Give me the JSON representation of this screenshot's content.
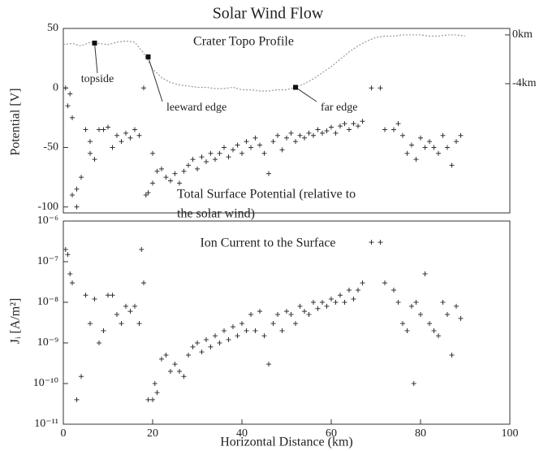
{
  "chart_data": [
    {
      "type": "scatter",
      "title": "Solar Wind Flow",
      "y_label": "Potential [V]",
      "xlim": [
        0,
        100
      ],
      "ylim": [
        -105,
        50
      ],
      "yticks": [
        -100,
        -50,
        0,
        50
      ],
      "y2lim": [
        -14.6,
        0.53
      ],
      "y2ticks": [
        {
          "value": 0,
          "label": "0km"
        },
        {
          "value": -4,
          "label": "-4km"
        }
      ],
      "annotations": [
        {
          "text": [
            "Crater Topo Profile"
          ]
        },
        {
          "text": [
            "Total Surface Potential (relative to",
            "the solar wind)"
          ]
        }
      ],
      "points": [
        {
          "label": "topside",
          "x": 7,
          "y2": -0.67
        },
        {
          "label": "leeward edge",
          "x": 19,
          "y2": -1.8
        },
        {
          "label": "far edge",
          "x": 52,
          "y2": -4.3
        }
      ],
      "series": [
        {
          "type": "scatter",
          "color": "#333",
          "x": [
            0.5,
            1,
            1.5,
            2,
            2,
            3,
            3,
            4,
            5,
            6,
            6,
            7,
            8,
            9,
            10,
            11,
            12,
            13,
            14,
            15,
            16,
            17,
            18,
            18.5,
            19,
            20,
            20,
            21,
            22,
            23,
            24,
            25,
            26,
            27,
            28,
            29,
            30,
            31,
            32,
            33,
            34,
            35,
            36,
            37,
            38,
            39,
            40,
            41,
            42,
            43,
            44,
            45,
            46,
            47,
            48,
            49,
            50,
            51,
            52,
            53,
            54,
            55,
            56,
            57,
            58,
            59,
            60,
            61,
            62,
            63,
            64,
            65,
            66,
            67,
            69,
            71,
            72,
            74,
            75,
            76,
            77,
            78,
            79,
            80,
            81,
            82,
            83,
            84,
            85,
            86,
            87,
            88,
            89
          ],
          "values": [
            0,
            -15,
            -5,
            -25,
            -90,
            -100,
            -85,
            -75,
            -35,
            -55,
            -45,
            -60,
            -35,
            -35,
            -33,
            -50,
            -40,
            -45,
            -38,
            -42,
            -35,
            -40,
            0,
            -90,
            -88,
            -80,
            -55,
            -70,
            -68,
            -75,
            -78,
            -72,
            -80,
            -70,
            -65,
            -60,
            -68,
            -58,
            -62,
            -55,
            -60,
            -55,
            -50,
            -58,
            -52,
            -48,
            -55,
            -45,
            -50,
            -42,
            -48,
            -55,
            -72,
            -45,
            -40,
            -52,
            -42,
            -38,
            -45,
            -40,
            -42,
            -38,
            -40,
            -35,
            -38,
            -36,
            -33,
            -38,
            -32,
            -30,
            -35,
            -30,
            -32,
            -28,
            0,
            0,
            -35,
            -35,
            -30,
            -40,
            -55,
            -48,
            -60,
            -42,
            -50,
            -45,
            -50,
            -55,
            -40,
            -50,
            -65,
            -45,
            -40
          ]
        },
        {
          "type": "line",
          "axis": "y2",
          "color": "#999",
          "x": [
            0,
            2,
            4,
            6,
            8,
            10,
            12,
            14,
            16,
            18,
            20,
            22,
            24,
            26,
            28,
            30,
            32,
            34,
            36,
            38,
            40,
            42,
            44,
            46,
            48,
            50,
            52,
            54,
            56,
            58,
            60,
            62,
            64,
            66,
            68,
            70,
            72,
            74,
            76,
            78,
            80,
            82,
            84,
            86,
            88,
            90
          ],
          "values": [
            -0.8,
            -0.7,
            -0.9,
            -0.6,
            -0.7,
            -0.8,
            -0.6,
            -0.5,
            -0.6,
            -1.5,
            -2.8,
            -3.5,
            -3.9,
            -4.1,
            -4.2,
            -4.3,
            -4.3,
            -4.4,
            -4.4,
            -4.3,
            -4.5,
            -4.5,
            -4.6,
            -4.6,
            -4.5,
            -4.5,
            -4.3,
            -4.0,
            -3.6,
            -3.1,
            -2.6,
            -2.0,
            -1.4,
            -0.9,
            -0.5,
            -0.2,
            -0.1,
            -0.1,
            0,
            0,
            0,
            -0.1,
            -0.1,
            0,
            0,
            -0.1
          ]
        }
      ]
    },
    {
      "type": "scatter",
      "y_label": "Jᵢ [A/m²]",
      "x_label": "Horizontal Distance (km)",
      "log_y": true,
      "xlim": [
        0,
        100
      ],
      "xticks": [
        0,
        20,
        40,
        60,
        80,
        100
      ],
      "ylim": [
        1e-11,
        1e-06
      ],
      "yticks": [
        {
          "value": 1e-11,
          "label": "10⁻¹¹"
        },
        {
          "value": 1e-10,
          "label": "10⁻¹⁰"
        },
        {
          "value": 1e-09,
          "label": "10⁻⁹"
        },
        {
          "value": 1e-08,
          "label": "10⁻⁸"
        },
        {
          "value": 1e-07,
          "label": "10⁻⁷"
        },
        {
          "value": 1e-06,
          "label": "10⁻⁶"
        }
      ],
      "annotations": [
        {
          "text": [
            "Ion Current to the Surface"
          ]
        }
      ],
      "series": [
        {
          "type": "scatter",
          "color": "#333",
          "x": [
            0.5,
            1,
            1.5,
            2,
            3,
            4,
            5,
            6,
            7,
            8,
            9,
            10,
            11,
            12,
            13,
            14,
            15,
            16,
            17,
            17.5,
            18,
            19,
            20,
            20.5,
            21,
            22,
            23,
            24,
            25,
            26,
            27,
            28,
            29,
            30,
            31,
            32,
            33,
            34,
            35,
            36,
            37,
            38,
            39,
            40,
            41,
            42,
            43,
            44,
            45,
            46,
            47,
            48,
            49,
            50,
            51,
            52,
            53,
            54,
            55,
            56,
            57,
            58,
            59,
            60,
            61,
            62,
            63,
            64,
            65,
            66,
            67,
            69,
            71,
            72,
            74,
            75,
            76,
            77,
            78,
            78.5,
            79,
            80,
            81,
            82,
            83,
            84,
            85,
            86,
            87,
            88,
            89
          ],
          "values": [
            2e-07,
            1.5e-07,
            5e-08,
            3e-08,
            4e-11,
            1.5e-10,
            1.5e-08,
            3e-09,
            1.2e-08,
            1e-09,
            2e-09,
            1.5e-08,
            1.5e-08,
            5e-09,
            3e-09,
            8e-09,
            6e-09,
            8e-09,
            3e-09,
            2e-07,
            3e-08,
            4e-11,
            4e-11,
            1e-10,
            6e-11,
            4e-10,
            5e-10,
            2e-10,
            3e-10,
            2e-10,
            1.5e-10,
            5e-10,
            8e-10,
            1e-09,
            6e-10,
            1.2e-09,
            8e-10,
            1.5e-09,
            1e-09,
            2e-09,
            1.2e-09,
            2.5e-09,
            1.5e-09,
            3e-09,
            2e-09,
            5e-09,
            2e-09,
            6e-09,
            1.5e-09,
            3e-10,
            3e-09,
            5e-09,
            2e-09,
            6e-09,
            5e-09,
            3e-09,
            8e-09,
            6e-09,
            5e-09,
            1e-08,
            7e-09,
            1e-08,
            8e-09,
            1.2e-08,
            1e-08,
            1.5e-08,
            1e-08,
            2e-08,
            1.2e-08,
            2e-08,
            3e-08,
            3e-07,
            3e-07,
            3e-08,
            2e-08,
            1e-08,
            3e-09,
            2e-09,
            8e-09,
            1e-10,
            1e-08,
            5e-09,
            5e-08,
            3e-09,
            2e-09,
            1.5e-09,
            1e-08,
            5e-09,
            5e-10,
            8e-09,
            4e-09
          ]
        }
      ]
    }
  ]
}
